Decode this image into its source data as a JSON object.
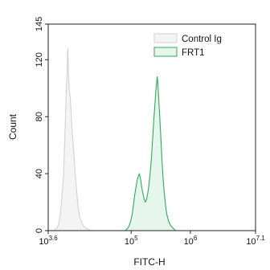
{
  "chart_data": {
    "type": "area",
    "xlabel": "FITC-H",
    "ylabel": "Count",
    "xscale": "log",
    "xlim": [
      3.6,
      7.1
    ],
    "ylim": [
      0,
      145
    ],
    "grid": false,
    "legend_position": "top-right",
    "x_ticks": [
      {
        "exp": 3.6,
        "base": "10",
        "sup": "3.6"
      },
      {
        "exp": 5,
        "base": "10",
        "sup": "5"
      },
      {
        "exp": 6,
        "base": "10",
        "sup": "6"
      },
      {
        "exp": 7.1,
        "base": "10",
        "sup": "7.1"
      }
    ],
    "y_ticks": [
      0,
      40,
      80,
      120,
      145
    ],
    "series": [
      {
        "name": "Control Ig",
        "stroke": "#d2d2d2",
        "fill": "#f4f4f4",
        "points": [
          [
            3.7,
            0
          ],
          [
            3.75,
            2
          ],
          [
            3.78,
            5
          ],
          [
            3.8,
            10
          ],
          [
            3.82,
            18
          ],
          [
            3.84,
            28
          ],
          [
            3.86,
            40
          ],
          [
            3.87,
            52
          ],
          [
            3.88,
            65
          ],
          [
            3.89,
            78
          ],
          [
            3.9,
            92
          ],
          [
            3.91,
            104
          ],
          [
            3.92,
            112
          ],
          [
            3.925,
            122
          ],
          [
            3.93,
            128
          ],
          [
            3.935,
            122
          ],
          [
            3.94,
            112
          ],
          [
            3.95,
            104
          ],
          [
            3.96,
            98
          ],
          [
            3.97,
            94
          ],
          [
            3.98,
            88
          ],
          [
            3.99,
            80
          ],
          [
            4.0,
            72
          ],
          [
            4.02,
            62
          ],
          [
            4.04,
            50
          ],
          [
            4.06,
            38
          ],
          [
            4.08,
            28
          ],
          [
            4.1,
            18
          ],
          [
            4.13,
            10
          ],
          [
            4.16,
            6
          ],
          [
            4.2,
            3
          ],
          [
            4.26,
            1
          ],
          [
            4.32,
            0
          ]
        ]
      },
      {
        "name": "FRT1",
        "stroke": "#2eaa59",
        "fill": "#e7f6ec",
        "points": [
          [
            4.9,
            0
          ],
          [
            4.95,
            2
          ],
          [
            4.98,
            5
          ],
          [
            5.0,
            8
          ],
          [
            5.02,
            12
          ],
          [
            5.04,
            18
          ],
          [
            5.06,
            25
          ],
          [
            5.08,
            30
          ],
          [
            5.1,
            35
          ],
          [
            5.12,
            38
          ],
          [
            5.14,
            40
          ],
          [
            5.16,
            36
          ],
          [
            5.18,
            30
          ],
          [
            5.2,
            26
          ],
          [
            5.22,
            22
          ],
          [
            5.24,
            20
          ],
          [
            5.26,
            22
          ],
          [
            5.28,
            26
          ],
          [
            5.3,
            32
          ],
          [
            5.32,
            40
          ],
          [
            5.34,
            50
          ],
          [
            5.36,
            62
          ],
          [
            5.38,
            76
          ],
          [
            5.4,
            88
          ],
          [
            5.42,
            100
          ],
          [
            5.44,
            108
          ],
          [
            5.45,
            104
          ],
          [
            5.46,
            96
          ],
          [
            5.48,
            82
          ],
          [
            5.5,
            66
          ],
          [
            5.52,
            50
          ],
          [
            5.54,
            36
          ],
          [
            5.56,
            26
          ],
          [
            5.58,
            18
          ],
          [
            5.6,
            12
          ],
          [
            5.63,
            7
          ],
          [
            5.66,
            4
          ],
          [
            5.7,
            2
          ],
          [
            5.75,
            0
          ]
        ]
      }
    ]
  }
}
